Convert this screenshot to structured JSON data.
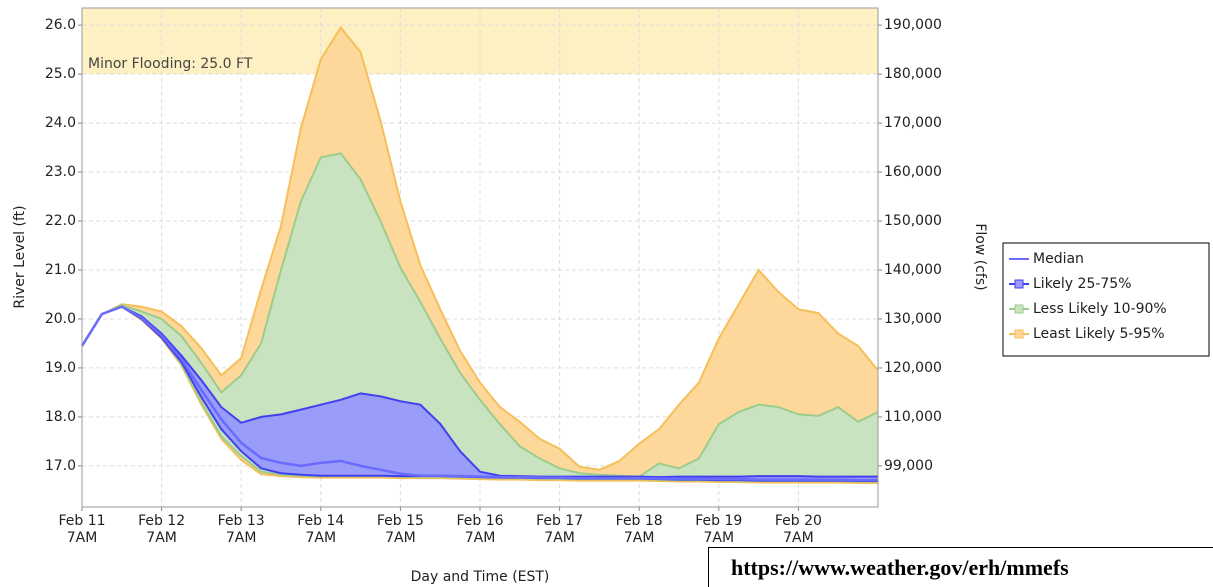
{
  "chart_data": {
    "type": "line",
    "xlabel": "Day and Time (EST)",
    "ylabel": "River Level (ft)",
    "y2label": "Flow (cfs)",
    "flood_stage": 25.0,
    "flood_label": "Minor Flooding: 25.0 FT",
    "flood_color": "#fdf0c2",
    "categories": [
      "Feb 11\n7AM",
      null,
      null,
      null,
      "Feb 12\n7AM",
      null,
      null,
      null,
      "Feb 13\n7AM",
      null,
      null,
      null,
      "Feb 14\n7AM",
      null,
      null,
      null,
      "Feb 15\n7AM",
      null,
      null,
      null,
      "Feb 16\n7AM",
      null,
      null,
      null,
      "Feb 17\n7AM",
      null,
      null,
      null,
      "Feb 18\n7AM",
      null,
      null,
      null,
      "Feb 19\n7AM",
      null,
      null,
      null,
      "Feb 20\n7AM",
      null,
      null,
      null,
      null
    ],
    "ylim": [
      16.16,
      26.35
    ],
    "yticks": [
      {
        "value": 17,
        "label": "17.0"
      },
      {
        "value": 18,
        "label": "18.0"
      },
      {
        "value": 19,
        "label": "19.0"
      },
      {
        "value": 20,
        "label": "20.0"
      },
      {
        "value": 21,
        "label": "21.0"
      },
      {
        "value": 22,
        "label": "22.0"
      },
      {
        "value": 23,
        "label": "23.0"
      },
      {
        "value": 24,
        "label": "24.0"
      },
      {
        "value": 25,
        "label": "25.0"
      },
      {
        "value": 26,
        "label": "26.0"
      }
    ],
    "y2ticks": [
      {
        "value": 99000,
        "label": "99,000",
        "level": 17
      },
      {
        "value": 110000,
        "label": "110,000",
        "level": 18
      },
      {
        "value": 120000,
        "label": "120,000",
        "level": 19
      },
      {
        "value": 130000,
        "label": "130,000",
        "level": 20
      },
      {
        "value": 140000,
        "label": "140,000",
        "level": 21
      },
      {
        "value": 150000,
        "label": "150,000",
        "level": 22
      },
      {
        "value": 160000,
        "label": "160,000",
        "level": 23
      },
      {
        "value": 170000,
        "label": "170,000",
        "level": 24
      },
      {
        "value": 180000,
        "label": "180,000",
        "level": 25
      },
      {
        "value": 190000,
        "label": "190,000",
        "level": 26
      }
    ],
    "grid": true,
    "legend": "right",
    "series": [
      {
        "name": "Least Likely 5-95%",
        "color": "#f5bf5a",
        "fill": "#fdd89a",
        "high": [
          19.45,
          20.1,
          20.3,
          20.25,
          20.15,
          19.85,
          19.4,
          18.85,
          19.2,
          20.6,
          21.9,
          23.9,
          25.3,
          25.95,
          25.45,
          24.05,
          22.4,
          21.1,
          20.2,
          19.35,
          18.7,
          18.2,
          17.9,
          17.55,
          17.35,
          16.98,
          16.92,
          17.1,
          17.45,
          17.75,
          18.25,
          18.7,
          19.6,
          20.3,
          21.0,
          20.55,
          20.2,
          20.12,
          19.7,
          19.45,
          18.95
        ],
        "low": [
          19.45,
          20.1,
          20.25,
          19.98,
          19.6,
          19.05,
          18.25,
          17.55,
          17.12,
          16.83,
          16.79,
          16.77,
          16.76,
          16.76,
          16.76,
          16.76,
          16.75,
          16.75,
          16.75,
          16.74,
          16.73,
          16.72,
          16.72,
          16.71,
          16.71,
          16.7,
          16.7,
          16.7,
          16.7,
          16.69,
          16.68,
          16.68,
          16.67,
          16.67,
          16.66,
          16.66,
          16.66,
          16.66,
          16.66,
          16.65,
          16.65
        ]
      },
      {
        "name": "Less Likely 10-90%",
        "color": "#9ccc8c",
        "fill": "#c9e3c0",
        "high": [
          19.45,
          20.1,
          20.28,
          20.15,
          20.0,
          19.65,
          19.1,
          18.5,
          18.85,
          19.5,
          21.0,
          22.4,
          23.3,
          23.38,
          22.85,
          22.0,
          21.05,
          20.35,
          19.6,
          18.9,
          18.35,
          17.85,
          17.4,
          17.15,
          16.95,
          16.85,
          16.82,
          16.8,
          16.78,
          17.05,
          16.95,
          17.15,
          17.85,
          18.1,
          18.25,
          18.2,
          18.05,
          18.02,
          18.2,
          17.9,
          18.1
        ],
        "low": [
          19.45,
          20.1,
          20.25,
          20.0,
          19.62,
          19.08,
          18.3,
          17.6,
          17.2,
          16.88,
          16.82,
          16.8,
          16.79,
          16.79,
          16.79,
          16.79,
          16.78,
          16.78,
          16.78,
          16.77,
          16.76,
          16.75,
          16.75,
          16.74,
          16.74,
          16.73,
          16.73,
          16.73,
          16.73,
          16.72,
          16.71,
          16.71,
          16.7,
          16.7,
          16.69,
          16.69,
          16.69,
          16.69,
          16.69,
          16.68,
          16.68
        ]
      },
      {
        "name": "Likely 25-75%",
        "color": "#4040f0",
        "fill": "#9a9cfa",
        "high": [
          19.45,
          20.1,
          20.25,
          20.05,
          19.7,
          19.25,
          18.75,
          18.2,
          17.88,
          18.0,
          18.05,
          18.15,
          18.25,
          18.35,
          18.48,
          18.42,
          18.32,
          18.25,
          17.86,
          17.3,
          16.88,
          16.8,
          16.79,
          16.78,
          16.78,
          16.78,
          16.78,
          16.78,
          16.78,
          16.77,
          16.78,
          16.78,
          16.78,
          16.78,
          16.79,
          16.79,
          16.79,
          16.78,
          16.78,
          16.78,
          16.78
        ],
        "low": [
          19.45,
          20.1,
          20.25,
          20.0,
          19.62,
          19.12,
          18.4,
          17.75,
          17.3,
          16.95,
          16.85,
          16.82,
          16.8,
          16.8,
          16.8,
          16.8,
          16.79,
          16.79,
          16.79,
          16.78,
          16.77,
          16.76,
          16.76,
          16.75,
          16.75,
          16.74,
          16.74,
          16.74,
          16.74,
          16.73,
          16.72,
          16.72,
          16.71,
          16.71,
          16.7,
          16.7,
          16.7,
          16.7,
          16.7,
          16.69,
          16.69
        ]
      },
      {
        "name": "Median",
        "color": "#6a6aff",
        "values": [
          19.45,
          20.1,
          20.25,
          20.02,
          19.66,
          19.18,
          18.55,
          17.95,
          17.47,
          17.16,
          17.06,
          17.0,
          17.06,
          17.1,
          17.0,
          16.92,
          16.84,
          16.8,
          16.8,
          16.79,
          16.78,
          16.77,
          16.77,
          16.76,
          16.76,
          16.75,
          16.75,
          16.75,
          16.75,
          16.74,
          16.74,
          16.74,
          16.73,
          16.73,
          16.72,
          16.72,
          16.72,
          16.72,
          16.72,
          16.71,
          16.71
        ]
      }
    ],
    "source_url": "https://www.weather.gov/erh/mmefs"
  }
}
